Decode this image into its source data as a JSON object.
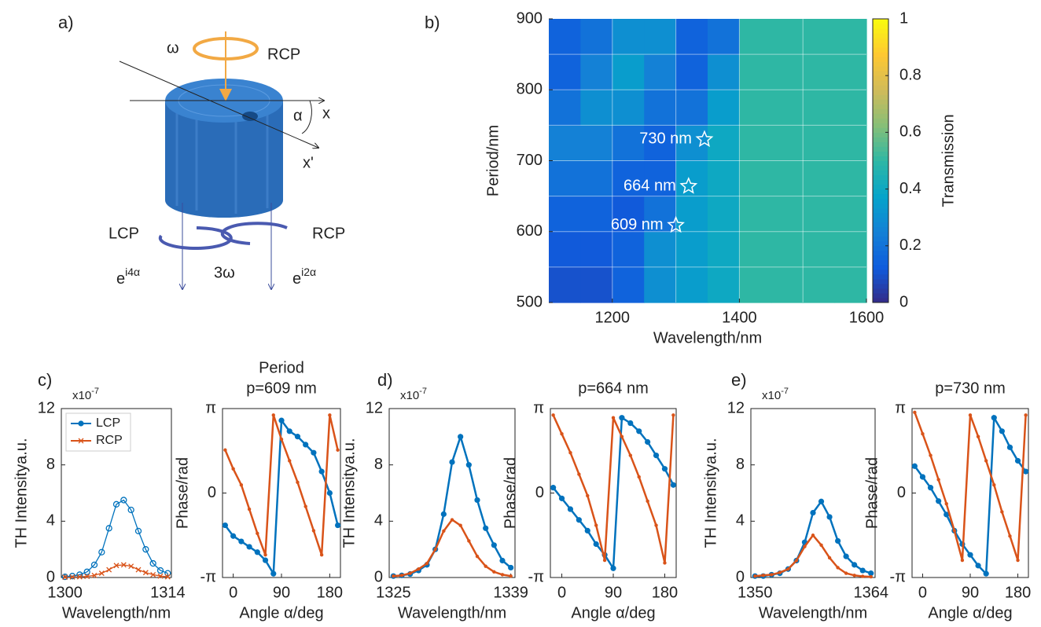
{
  "panel_labels": [
    "a)",
    "b)",
    "c)",
    "d)",
    "e)"
  ],
  "diagram": {
    "omega": "ω",
    "rcp_in": "RCP",
    "x": "x",
    "alpha": "α",
    "x_prime": "x'",
    "lcp_out": "LCP",
    "rcp_out": "RCP",
    "e_left": "e",
    "e_left_exp": "i4α",
    "three_omega": "3ω",
    "e_right": "e",
    "e_right_exp": "i2α"
  },
  "chart_data": [
    {
      "type": "heatmap",
      "xlabel": "Wavelength/nm",
      "ylabel": "Period/nm",
      "xlim": [
        1100,
        1600
      ],
      "ylim": [
        500,
        900
      ],
      "xticks": [
        1200,
        1400,
        1600
      ],
      "yticks": [
        500,
        600,
        700,
        800,
        900
      ],
      "xgrid": [
        1200,
        1300,
        1400,
        1500
      ],
      "ygrid": [
        550,
        600,
        650,
        700,
        750,
        800,
        850
      ],
      "x": [
        1125,
        1175,
        1225,
        1275,
        1325,
        1375,
        1425,
        1475,
        1525,
        1575
      ],
      "y": [
        525,
        575,
        625,
        675,
        725,
        775,
        825,
        875
      ],
      "z": [
        [
          0.1,
          0.1,
          0.15,
          0.3,
          0.35,
          0.4,
          0.5,
          0.5,
          0.5,
          0.5
        ],
        [
          0.12,
          0.12,
          0.15,
          0.3,
          0.35,
          0.4,
          0.5,
          0.5,
          0.5,
          0.5
        ],
        [
          0.15,
          0.15,
          0.12,
          0.2,
          0.35,
          0.4,
          0.5,
          0.5,
          0.5,
          0.5
        ],
        [
          0.2,
          0.2,
          0.15,
          0.15,
          0.35,
          0.4,
          0.5,
          0.5,
          0.5,
          0.5
        ],
        [
          0.25,
          0.25,
          0.2,
          0.15,
          0.3,
          0.4,
          0.5,
          0.5,
          0.5,
          0.5
        ],
        [
          0.2,
          0.3,
          0.3,
          0.2,
          0.2,
          0.35,
          0.5,
          0.5,
          0.5,
          0.5
        ],
        [
          0.15,
          0.25,
          0.35,
          0.25,
          0.15,
          0.3,
          0.5,
          0.5,
          0.5,
          0.5
        ],
        [
          0.15,
          0.2,
          0.3,
          0.3,
          0.15,
          0.2,
          0.5,
          0.5,
          0.5,
          0.5
        ]
      ],
      "colormap": [
        "#352a87",
        "#0f5cdd",
        "#1481d6",
        "#06a4ca",
        "#2eb7a4",
        "#87bf77",
        "#d1bb59",
        "#fec832",
        "#f9fb0e"
      ],
      "colorbar": {
        "label": "Transmission",
        "lim": [
          0,
          1
        ],
        "ticks": [
          0,
          0.2,
          0.4,
          0.6,
          0.8,
          1
        ]
      },
      "annotations": [
        {
          "x": 1300,
          "y": 609,
          "label": "609 nm"
        },
        {
          "x": 1320,
          "y": 664,
          "label": "664 nm"
        },
        {
          "x": 1345,
          "y": 730,
          "label": "730 nm"
        }
      ]
    },
    {
      "type": "line",
      "xlabel": "Wavelength/nm",
      "ylabel": "TH Intensitya.u.",
      "y_multiplier": "x10",
      "y_multiplier_exp": "-7",
      "xlim": [
        1299.5,
        1314.5
      ],
      "ylim": [
        0,
        12
      ],
      "xticks": [
        1300,
        1314
      ],
      "yticks": [
        0,
        4,
        8,
        12
      ],
      "legend": "upper left",
      "x": [
        1300,
        1301,
        1302,
        1303,
        1304,
        1305,
        1306,
        1307,
        1308,
        1309,
        1310,
        1311,
        1312,
        1313,
        1314
      ],
      "series": [
        {
          "name": "LCP",
          "color": "#0072bd",
          "marker": "open-circle",
          "values": [
            0.05,
            0.1,
            0.2,
            0.4,
            0.9,
            1.8,
            3.5,
            5.2,
            5.5,
            4.8,
            3.3,
            2.0,
            1.0,
            0.5,
            0.3
          ]
        },
        {
          "name": "RCP",
          "color": "#d95319",
          "marker": "cross",
          "values": [
            0.02,
            0.03,
            0.05,
            0.08,
            0.15,
            0.3,
            0.55,
            0.85,
            0.9,
            0.8,
            0.55,
            0.35,
            0.2,
            0.1,
            0.05
          ]
        }
      ]
    },
    {
      "type": "line",
      "title": [
        "Period",
        "p=609 nm"
      ],
      "xlabel": "Angle α/deg",
      "ylabel": "Phase/rad",
      "xlim": [
        -20,
        200
      ],
      "ylim": [
        -3.1416,
        3.1416
      ],
      "xticks": [
        0,
        90,
        180
      ],
      "yticks": [
        {
          "value": 3.1416,
          "label": "π"
        },
        0,
        {
          "value": -3.1416,
          "label": "-π"
        }
      ],
      "x": [
        -15,
        0,
        15,
        30,
        45,
        60,
        75,
        90,
        105,
        120,
        135,
        150,
        165,
        180,
        195
      ],
      "series": [
        {
          "color": "#0072bd",
          "marker": "dot",
          "values": [
            -1.2,
            -1.6,
            -1.8,
            -2.0,
            -2.2,
            -2.5,
            -3.0,
            2.7,
            2.3,
            2.1,
            1.8,
            1.5,
            0.8,
            0.0,
            -1.2
          ]
        },
        {
          "color": "#d95319",
          "marker": "small-dot",
          "values": [
            1.6,
            0.9,
            0.3,
            -0.6,
            -1.5,
            -2.3,
            2.9,
            2.0,
            1.2,
            0.4,
            -0.5,
            -1.4,
            -2.3,
            2.9,
            1.6
          ]
        }
      ]
    },
    {
      "type": "line",
      "xlabel": "Wavelength/nm",
      "ylabel": "TH Intensitya.u.",
      "y_multiplier": "x10",
      "y_multiplier_exp": "-7",
      "xlim": [
        1324.5,
        1339.5
      ],
      "ylim": [
        0,
        12
      ],
      "xticks": [
        1325,
        1339
      ],
      "yticks": [
        0,
        4,
        8,
        12
      ],
      "x": [
        1325,
        1326,
        1327,
        1328,
        1329,
        1330,
        1331,
        1332,
        1333,
        1334,
        1335,
        1336,
        1337,
        1338,
        1339
      ],
      "series": [
        {
          "color": "#0072bd",
          "marker": "dot",
          "values": [
            0.1,
            0.15,
            0.25,
            0.5,
            0.9,
            2.0,
            4.5,
            8.2,
            10,
            8,
            5.5,
            3.5,
            2.3,
            1.2,
            0.7
          ]
        },
        {
          "color": "#d95319",
          "marker": "small-dot",
          "values": [
            0.1,
            0.15,
            0.3,
            0.6,
            1.0,
            2.0,
            3.3,
            4.1,
            3.7,
            2.6,
            1.5,
            0.8,
            0.4,
            0.2,
            0.1
          ]
        }
      ]
    },
    {
      "type": "line",
      "title": "p=664 nm",
      "xlabel": "Angle α/deg",
      "ylabel": "Phase/rad",
      "xlim": [
        -20,
        200
      ],
      "ylim": [
        -3.1416,
        3.1416
      ],
      "xticks": [
        0,
        90,
        180
      ],
      "yticks": [
        {
          "value": 3.1416,
          "label": "π"
        },
        0,
        {
          "value": -3.1416,
          "label": "-π"
        }
      ],
      "x": [
        -15,
        0,
        15,
        30,
        45,
        60,
        75,
        90,
        105,
        120,
        135,
        150,
        165,
        180,
        195
      ],
      "series": [
        {
          "color": "#0072bd",
          "marker": "dot",
          "values": [
            0.2,
            -0.2,
            -0.6,
            -1.0,
            -1.4,
            -1.9,
            -2.3,
            -2.8,
            2.8,
            2.6,
            2.3,
            1.9,
            1.4,
            0.9,
            0.3
          ]
        },
        {
          "color": "#d95319",
          "marker": "small-dot",
          "values": [
            2.9,
            2.2,
            1.5,
            0.7,
            -0.1,
            -1.2,
            -2.5,
            2.8,
            2.1,
            1.4,
            0.6,
            -0.3,
            -1.2,
            -2.6,
            2.9
          ]
        }
      ]
    },
    {
      "type": "line",
      "xlabel": "Wavelength/nm",
      "ylabel": "TH Intensitya.u.",
      "y_multiplier": "x10",
      "y_multiplier_exp": "-7",
      "xlim": [
        1349.5,
        1364.5
      ],
      "ylim": [
        0,
        12
      ],
      "xticks": [
        1350,
        1364
      ],
      "yticks": [
        0,
        4,
        8,
        12
      ],
      "x": [
        1350,
        1351,
        1352,
        1353,
        1354,
        1355,
        1356,
        1357,
        1358,
        1359,
        1360,
        1361,
        1362,
        1363,
        1364
      ],
      "series": [
        {
          "color": "#0072bd",
          "marker": "dot",
          "values": [
            0.1,
            0.1,
            0.2,
            0.3,
            0.6,
            1.2,
            2.5,
            4.6,
            5.4,
            4.3,
            2.6,
            1.5,
            0.9,
            0.5,
            0.3
          ]
        },
        {
          "color": "#d95319",
          "marker": "small-dot",
          "values": [
            0.1,
            0.15,
            0.2,
            0.35,
            0.6,
            1.2,
            2.2,
            3.0,
            2.3,
            1.4,
            0.7,
            0.3,
            0.15,
            0.08,
            0.05
          ]
        }
      ]
    },
    {
      "type": "line",
      "title": "p=730 nm",
      "xlabel": "Angle α/deg",
      "ylabel": "Phase/rad",
      "xlim": [
        -20,
        200
      ],
      "ylim": [
        -3.1416,
        3.1416
      ],
      "xticks": [
        0,
        90,
        180
      ],
      "yticks": [
        {
          "value": 3.1416,
          "label": "π"
        },
        0,
        {
          "value": -3.1416,
          "label": "-π"
        }
      ],
      "x": [
        -15,
        0,
        15,
        30,
        45,
        60,
        75,
        90,
        105,
        120,
        135,
        150,
        165,
        180,
        195
      ],
      "series": [
        {
          "color": "#0072bd",
          "marker": "dot",
          "values": [
            1.0,
            0.6,
            0.2,
            -0.3,
            -0.8,
            -1.4,
            -1.9,
            -2.3,
            -2.7,
            -3.0,
            2.8,
            2.3,
            1.7,
            1.2,
            0.8
          ]
        },
        {
          "color": "#d95319",
          "marker": "small-dot",
          "values": [
            3.0,
            2.2,
            1.4,
            0.5,
            -0.4,
            -1.4,
            -2.5,
            2.9,
            2.1,
            1.2,
            0.3,
            -0.7,
            -1.6,
            -2.5,
            2.9
          ]
        }
      ]
    }
  ]
}
